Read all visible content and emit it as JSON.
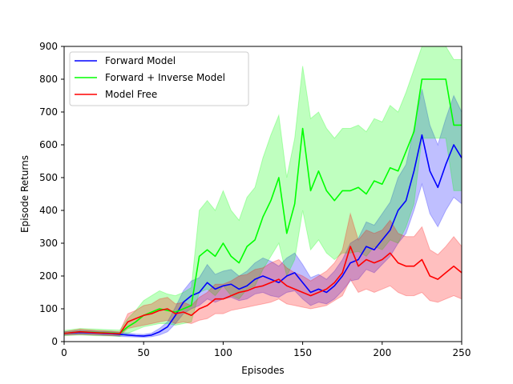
{
  "chart_data": {
    "type": "line",
    "title": "",
    "xlabel": "Episodes",
    "ylabel": "Episode Returns",
    "xlim": [
      0,
      250
    ],
    "ylim": [
      0,
      900
    ],
    "xticks": [
      0,
      50,
      100,
      150,
      200,
      250
    ],
    "yticks": [
      0,
      100,
      200,
      300,
      400,
      500,
      600,
      700,
      800,
      900
    ],
    "grid": false,
    "legend": "top-left",
    "series": [
      {
        "name": "Forward Model",
        "color": "#0000ff",
        "x": [
          0,
          10,
          20,
          30,
          35,
          40,
          45,
          50,
          55,
          60,
          65,
          70,
          75,
          80,
          85,
          90,
          95,
          100,
          105,
          110,
          115,
          120,
          125,
          130,
          135,
          140,
          145,
          150,
          155,
          160,
          165,
          170,
          175,
          180,
          185,
          190,
          195,
          200,
          205,
          210,
          215,
          220,
          225,
          230,
          235,
          240,
          245,
          250
        ],
        "y": [
          25,
          28,
          26,
          24,
          22,
          20,
          18,
          17,
          20,
          30,
          45,
          80,
          120,
          140,
          150,
          180,
          160,
          170,
          175,
          160,
          170,
          190,
          200,
          190,
          180,
          200,
          210,
          180,
          150,
          160,
          150,
          170,
          200,
          240,
          250,
          290,
          280,
          310,
          340,
          400,
          430,
          520,
          630,
          520,
          470,
          540,
          600,
          560
        ],
        "lower": [
          20,
          22,
          20,
          18,
          16,
          15,
          14,
          13,
          15,
          20,
          30,
          55,
          85,
          100,
          110,
          130,
          120,
          130,
          135,
          125,
          130,
          145,
          150,
          140,
          135,
          150,
          155,
          130,
          110,
          120,
          115,
          130,
          155,
          185,
          190,
          220,
          210,
          235,
          260,
          300,
          330,
          400,
          480,
          390,
          350,
          400,
          440,
          420
        ],
        "upper": [
          30,
          34,
          32,
          30,
          28,
          26,
          23,
          22,
          26,
          40,
          60,
          105,
          155,
          185,
          195,
          235,
          205,
          215,
          220,
          200,
          215,
          240,
          255,
          245,
          230,
          255,
          270,
          235,
          195,
          205,
          190,
          215,
          250,
          300,
          315,
          365,
          355,
          390,
          425,
          500,
          540,
          650,
          770,
          660,
          600,
          680,
          750,
          700
        ]
      },
      {
        "name": "Forward + Inverse Model",
        "color": "#00ff00",
        "x": [
          0,
          10,
          20,
          30,
          35,
          40,
          45,
          50,
          55,
          60,
          65,
          70,
          75,
          80,
          85,
          90,
          95,
          100,
          105,
          110,
          115,
          120,
          125,
          130,
          135,
          140,
          145,
          150,
          155,
          160,
          165,
          170,
          175,
          180,
          185,
          190,
          195,
          200,
          205,
          210,
          215,
          220,
          225,
          230,
          235,
          240,
          245,
          250
        ],
        "y": [
          25,
          30,
          28,
          26,
          25,
          45,
          60,
          80,
          90,
          100,
          95,
          90,
          100,
          110,
          260,
          280,
          260,
          300,
          260,
          240,
          290,
          310,
          380,
          430,
          500,
          330,
          420,
          650,
          460,
          520,
          460,
          430,
          460,
          460,
          470,
          450,
          490,
          480,
          530,
          520,
          580,
          640,
          800,
          800,
          800,
          800,
          660,
          660
        ],
        "lower": [
          18,
          20,
          18,
          17,
          16,
          25,
          35,
          45,
          50,
          55,
          55,
          50,
          55,
          60,
          150,
          160,
          140,
          170,
          140,
          130,
          160,
          170,
          220,
          260,
          300,
          200,
          250,
          400,
          280,
          310,
          270,
          250,
          270,
          270,
          275,
          260,
          290,
          280,
          310,
          300,
          350,
          420,
          620,
          620,
          620,
          620,
          460,
          460
        ],
        "upper": [
          34,
          40,
          38,
          36,
          35,
          70,
          95,
          125,
          140,
          155,
          145,
          140,
          150,
          165,
          400,
          430,
          400,
          460,
          400,
          370,
          440,
          470,
          560,
          630,
          690,
          500,
          620,
          840,
          680,
          700,
          650,
          620,
          650,
          650,
          660,
          640,
          680,
          670,
          720,
          700,
          760,
          830,
          900,
          900,
          900,
          900,
          860,
          860
        ]
      },
      {
        "name": "Model Free",
        "color": "#ff0000",
        "x": [
          0,
          10,
          20,
          30,
          35,
          40,
          45,
          50,
          55,
          60,
          65,
          70,
          75,
          80,
          85,
          90,
          95,
          100,
          105,
          110,
          115,
          120,
          125,
          130,
          135,
          140,
          145,
          150,
          155,
          160,
          165,
          170,
          175,
          180,
          185,
          190,
          195,
          200,
          205,
          210,
          215,
          220,
          225,
          230,
          235,
          240,
          245,
          250
        ],
        "y": [
          25,
          30,
          27,
          25,
          24,
          60,
          70,
          80,
          85,
          95,
          100,
          85,
          90,
          80,
          100,
          110,
          130,
          130,
          140,
          150,
          155,
          165,
          170,
          180,
          190,
          170,
          160,
          150,
          140,
          150,
          160,
          180,
          210,
          290,
          230,
          250,
          240,
          250,
          270,
          240,
          230,
          230,
          250,
          200,
          190,
          210,
          230,
          210
        ],
        "lower": [
          20,
          22,
          20,
          18,
          18,
          40,
          45,
          50,
          55,
          60,
          65,
          55,
          60,
          55,
          65,
          70,
          85,
          85,
          95,
          100,
          105,
          110,
          115,
          120,
          130,
          115,
          110,
          105,
          100,
          105,
          110,
          125,
          140,
          190,
          150,
          160,
          150,
          160,
          170,
          150,
          140,
          140,
          150,
          125,
          120,
          130,
          140,
          130
        ],
        "upper": [
          30,
          38,
          34,
          32,
          30,
          85,
          95,
          110,
          115,
          130,
          135,
          115,
          120,
          110,
          135,
          150,
          175,
          175,
          185,
          200,
          205,
          220,
          225,
          240,
          250,
          225,
          210,
          200,
          185,
          200,
          215,
          240,
          280,
          390,
          310,
          340,
          330,
          340,
          370,
          330,
          320,
          320,
          350,
          280,
          265,
          290,
          320,
          290
        ]
      }
    ]
  }
}
